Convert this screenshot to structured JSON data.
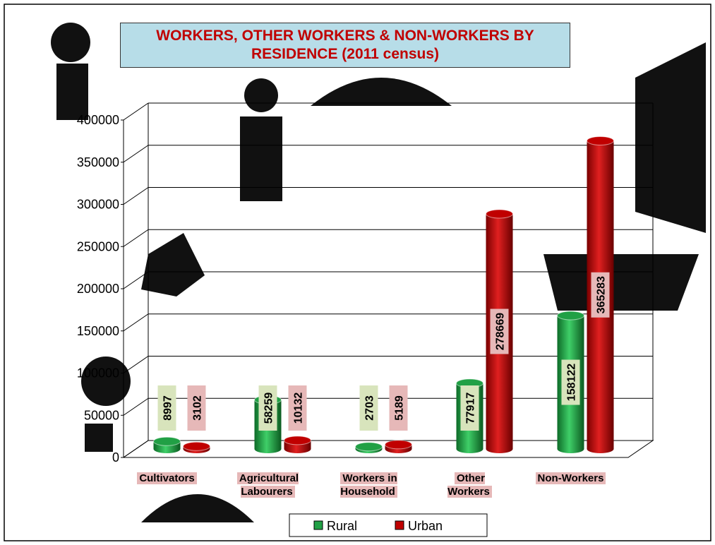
{
  "chart_data": {
    "type": "bar",
    "title": "WORKERS, OTHER WORKERS & NON-WORKERS BY RESIDENCE (2011 census)",
    "categories": [
      "Cultivators",
      "Agricultural Labourers",
      "Workers in Household",
      "Other Workers",
      "Non-Workers"
    ],
    "series": [
      {
        "name": "Rural",
        "color": "#21a045",
        "values": [
          8997,
          58259,
          2703,
          77917,
          158122
        ]
      },
      {
        "name": "Urban",
        "color": "#c00000",
        "values": [
          3102,
          10132,
          5189,
          278669,
          365283
        ]
      }
    ],
    "ylim": [
      0,
      400000
    ],
    "yticks": [
      0,
      50000,
      100000,
      150000,
      200000,
      250000,
      300000,
      350000,
      400000
    ],
    "grid": true,
    "legend": "bottom"
  }
}
